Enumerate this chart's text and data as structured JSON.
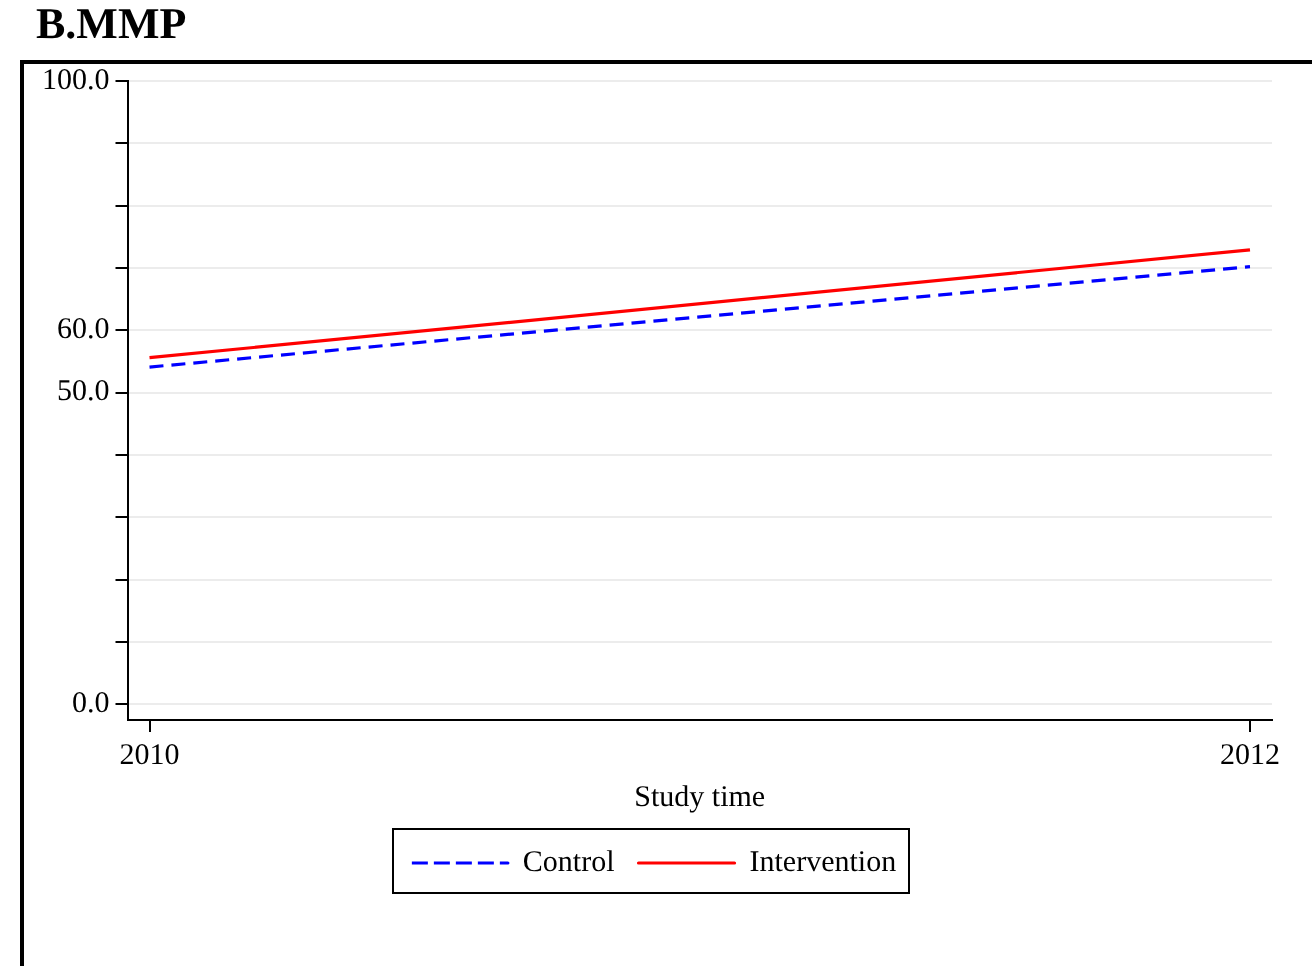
{
  "chart_data": {
    "type": "line",
    "title": "B.MMP",
    "xlabel": "Study time",
    "x": [
      2010,
      2012
    ],
    "series": [
      {
        "name": "Control",
        "color": "#0000ff",
        "line_style": "dashed",
        "values": [
          54.1,
          70.2
        ]
      },
      {
        "name": "Intervention",
        "color": "#ff0000",
        "line_style": "solid",
        "values": [
          55.6,
          72.9
        ]
      }
    ],
    "xlim": [
      2009.96,
      2012.04
    ],
    "xticks": [
      2010,
      2012
    ],
    "ylim": [
      -2.5,
      100
    ],
    "yticks": [
      {
        "value": 0,
        "label": "0.0"
      },
      {
        "value": 10,
        "label": null
      },
      {
        "value": 20,
        "label": null
      },
      {
        "value": 30,
        "label": null
      },
      {
        "value": 40,
        "label": null
      },
      {
        "value": 50,
        "label": "50.0"
      },
      {
        "value": 60,
        "label": "60.0"
      },
      {
        "value": 70,
        "label": null
      },
      {
        "value": 80,
        "label": null
      },
      {
        "value": 90,
        "label": null
      },
      {
        "value": 100,
        "label": "100.0"
      }
    ],
    "grid": "y",
    "legend": "bottom",
    "marker": "none"
  }
}
